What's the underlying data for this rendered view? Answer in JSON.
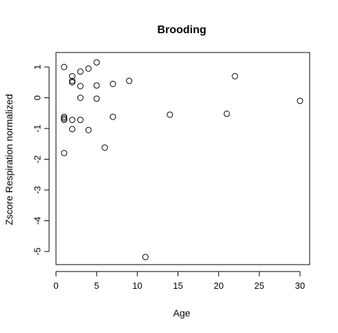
{
  "chart_data": {
    "type": "scatter",
    "title": "Brooding",
    "xlabel": "Age",
    "ylabel": "Zscore Respiration normalized",
    "xlim": [
      0,
      30
    ],
    "ylim": [
      -5.2,
      1.2
    ],
    "xticks": [
      0,
      5,
      10,
      15,
      20,
      25,
      30
    ],
    "yticks": [
      -5,
      -4,
      -3,
      -2,
      -1,
      0,
      1
    ],
    "grid": false,
    "legend": "none",
    "points": [
      {
        "x": 1,
        "y": 1.0
      },
      {
        "x": 1,
        "y": -0.62
      },
      {
        "x": 1,
        "y": -0.67
      },
      {
        "x": 1,
        "y": -0.72
      },
      {
        "x": 1,
        "y": -1.8
      },
      {
        "x": 2,
        "y": 0.7
      },
      {
        "x": 2,
        "y": 0.55
      },
      {
        "x": 2,
        "y": 0.5
      },
      {
        "x": 2,
        "y": -0.72
      },
      {
        "x": 2,
        "y": -1.02
      },
      {
        "x": 3,
        "y": 0.85
      },
      {
        "x": 3,
        "y": 0.38
      },
      {
        "x": 3,
        "y": 0.0
      },
      {
        "x": 3,
        "y": -0.72
      },
      {
        "x": 4,
        "y": 0.95
      },
      {
        "x": 4,
        "y": -1.05
      },
      {
        "x": 5,
        "y": 1.15
      },
      {
        "x": 5,
        "y": 0.4
      },
      {
        "x": 5,
        "y": -0.03
      },
      {
        "x": 6,
        "y": -1.62
      },
      {
        "x": 7,
        "y": 0.45
      },
      {
        "x": 7,
        "y": -0.62
      },
      {
        "x": 9,
        "y": 0.55
      },
      {
        "x": 11,
        "y": -5.18
      },
      {
        "x": 14,
        "y": -0.55
      },
      {
        "x": 21,
        "y": -0.52
      },
      {
        "x": 22,
        "y": 0.7
      },
      {
        "x": 30,
        "y": -0.1
      }
    ]
  }
}
